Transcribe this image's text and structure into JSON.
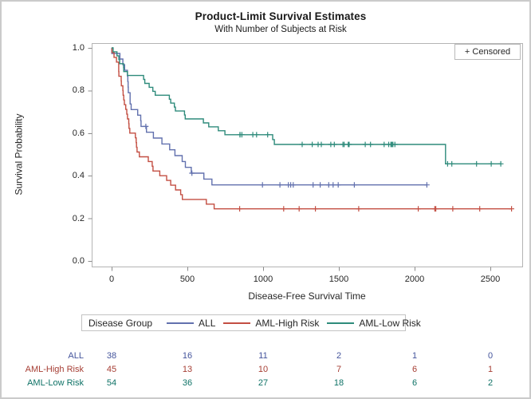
{
  "chart_data": {
    "type": "line",
    "subtype": "kaplan-meier-step",
    "title": "Product-Limit Survival Estimates",
    "subtitle": "With Number of Subjects at Risk",
    "censored_label": "+ Censored",
    "xlabel": "Disease-Free Survival Time",
    "ylabel": "Survival Probability",
    "xlim": [
      0,
      2711
    ],
    "ylim": [
      0.0,
      1.0
    ],
    "xticks": [
      0,
      500,
      1000,
      1500,
      2000,
      2500
    ],
    "xtick_labels": [
      "0",
      "500",
      "1000",
      "1500",
      "2000",
      "2500"
    ],
    "yticks": [
      1.0,
      0.8,
      0.6,
      0.4,
      0.2,
      0.0
    ],
    "ytick_labels": [
      "1.0",
      "0.8",
      "0.6",
      "0.4",
      "0.2",
      "0.0"
    ],
    "grid": false,
    "legend": {
      "title": "Disease Group",
      "position": "bottom"
    },
    "colors": {
      "frame": "#b4b4b4",
      "tick": "#8c8c8c",
      "text": "#262626",
      "outer_border": "#cbcbcb"
    },
    "at_risk_times": [
      0,
      500,
      1000,
      1500,
      2000,
      2500
    ],
    "series": [
      {
        "name": "ALL",
        "line_color": "#6271ae",
        "label_color": "#44549c",
        "steps": [
          [
            0,
            1.0
          ],
          [
            1,
            0.9737
          ],
          [
            55,
            0.9474
          ],
          [
            74,
            0.9211
          ],
          [
            86,
            0.8947
          ],
          [
            104,
            0.8684
          ],
          [
            107,
            0.8421
          ],
          [
            109,
            0.8158
          ],
          [
            110,
            0.7895
          ],
          [
            122,
            0.7368
          ],
          [
            129,
            0.7105
          ],
          [
            172,
            0.6842
          ],
          [
            192,
            0.6579
          ],
          [
            194,
            0.6316
          ],
          [
            230,
            0.6041
          ],
          [
            276,
            0.5767
          ],
          [
            332,
            0.5492
          ],
          [
            383,
            0.5217
          ],
          [
            418,
            0.4943
          ],
          [
            466,
            0.4668
          ],
          [
            487,
            0.4394
          ],
          [
            526,
            0.4119
          ],
          [
            609,
            0.3844
          ],
          [
            662,
            0.357
          ]
        ],
        "end_time": 2081,
        "censor_times": [
          226,
          530,
          996,
          1111,
          1167,
          1182,
          1199,
          1330,
          1377,
          1433,
          1462,
          1496,
          1602,
          2081
        ],
        "at_risk": [
          38,
          16,
          11,
          2,
          1,
          0
        ]
      },
      {
        "name": "AML-High Risk",
        "line_color": "#c34e42",
        "label_color": "#a63e34",
        "steps": [
          [
            0,
            1.0
          ],
          [
            2,
            0.9778
          ],
          [
            16,
            0.9556
          ],
          [
            32,
            0.9333
          ],
          [
            47,
            0.8889
          ],
          [
            48,
            0.8667
          ],
          [
            63,
            0.8444
          ],
          [
            64,
            0.8222
          ],
          [
            74,
            0.8
          ],
          [
            76,
            0.7778
          ],
          [
            80,
            0.7556
          ],
          [
            84,
            0.7333
          ],
          [
            93,
            0.7111
          ],
          [
            100,
            0.6889
          ],
          [
            105,
            0.6667
          ],
          [
            113,
            0.6444
          ],
          [
            115,
            0.6222
          ],
          [
            120,
            0.6
          ],
          [
            157,
            0.5778
          ],
          [
            162,
            0.5556
          ],
          [
            164,
            0.5333
          ],
          [
            168,
            0.5111
          ],
          [
            183,
            0.4889
          ],
          [
            242,
            0.4667
          ],
          [
            268,
            0.4444
          ],
          [
            273,
            0.4222
          ],
          [
            318,
            0.4
          ],
          [
            363,
            0.3778
          ],
          [
            390,
            0.3556
          ],
          [
            422,
            0.3333
          ],
          [
            456,
            0.3111
          ],
          [
            467,
            0.2889
          ],
          [
            625,
            0.2667
          ],
          [
            677,
            0.2444
          ]
        ],
        "end_time": 2640,
        "censor_times": [
          845,
          1136,
          1238,
          1345,
          1631,
          2024,
          2133,
          2140,
          2252,
          2430,
          2640
        ],
        "at_risk": [
          45,
          13,
          10,
          7,
          6,
          1
        ]
      },
      {
        "name": "AML-Low Risk",
        "line_color": "#2e8b7b",
        "label_color": "#0e7266",
        "steps": [
          [
            0,
            1.0
          ],
          [
            10,
            0.9815
          ],
          [
            35,
            0.963
          ],
          [
            48,
            0.9444
          ],
          [
            53,
            0.9259
          ],
          [
            79,
            0.9074
          ],
          [
            80,
            0.8889
          ],
          [
            105,
            0.8704
          ],
          [
            211,
            0.8519
          ],
          [
            219,
            0.8333
          ],
          [
            248,
            0.8148
          ],
          [
            272,
            0.7963
          ],
          [
            288,
            0.7778
          ],
          [
            381,
            0.7593
          ],
          [
            390,
            0.7407
          ],
          [
            414,
            0.7222
          ],
          [
            421,
            0.7037
          ],
          [
            481,
            0.6852
          ],
          [
            486,
            0.6667
          ],
          [
            606,
            0.6481
          ],
          [
            641,
            0.6296
          ],
          [
            704,
            0.6111
          ],
          [
            748,
            0.5926
          ],
          [
            1063,
            0.5698
          ],
          [
            1074,
            0.547
          ],
          [
            2204,
            0.4558
          ]
        ],
        "end_time": 2569,
        "censor_times": [
          847,
          848,
          860,
          932,
          957,
          1030,
          1258,
          1324,
          1363,
          1384,
          1447,
          1470,
          1527,
          1535,
          1562,
          1568,
          1674,
          1709,
          1799,
          1829,
          1843,
          1850,
          1857,
          1870,
          2218,
          2246,
          2409,
          2506,
          2569
        ],
        "at_risk": [
          54,
          36,
          27,
          18,
          6,
          2
        ]
      }
    ]
  }
}
